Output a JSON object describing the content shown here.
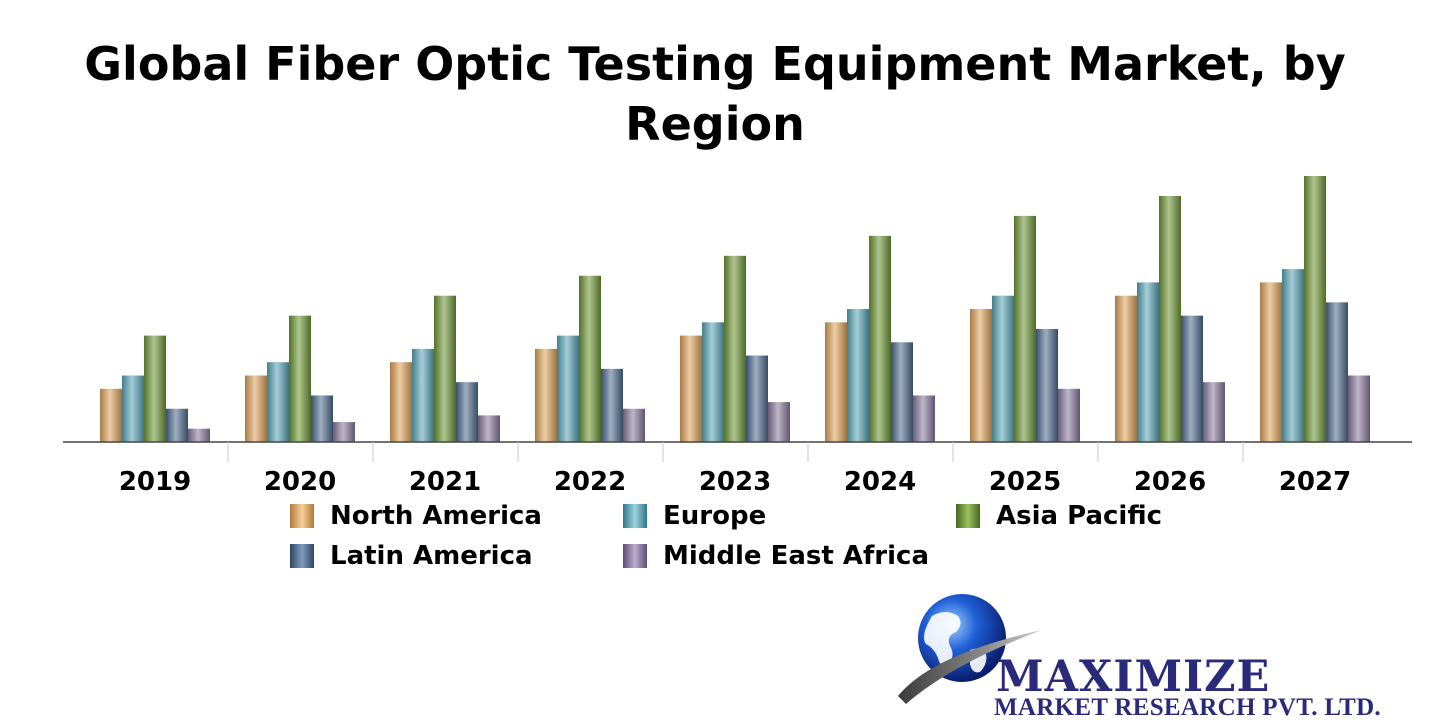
{
  "chart_data": {
    "type": "bar",
    "title_lines": [
      "Global Fiber Optic Testing Equipment Market, by",
      "Region"
    ],
    "categories": [
      "2019",
      "2020",
      "2021",
      "2022",
      "2023",
      "2024",
      "2025",
      "2026",
      "2027"
    ],
    "ylim": [
      0,
      20
    ],
    "grid": false,
    "legend_position": "bottom",
    "series": [
      {
        "name": "North America",
        "color": "#e0a45c",
        "values": [
          4,
          5,
          6,
          7,
          8,
          9,
          10,
          11,
          12
        ]
      },
      {
        "name": "Europe",
        "color": "#5aa6b8",
        "values": [
          5,
          6,
          7,
          8,
          9,
          10,
          11,
          12,
          13
        ]
      },
      {
        "name": "Asia Pacific",
        "color": "#6e9636",
        "values": [
          8,
          9.5,
          11,
          12.5,
          14,
          15.5,
          17,
          18.5,
          20
        ]
      },
      {
        "name": "Latin America",
        "color": "#4f6b8f",
        "values": [
          2.5,
          3.5,
          4.5,
          5.5,
          6.5,
          7.5,
          8.5,
          9.5,
          10.5
        ]
      },
      {
        "name": "Middle East Africa",
        "color": "#8a7a9e",
        "values": [
          1,
          1.5,
          2,
          2.5,
          3,
          3.5,
          4,
          4.5,
          5
        ]
      }
    ]
  },
  "logo": {
    "line1": "MAXIMIZE",
    "line2": "MARKET RESEARCH PVT. LTD."
  }
}
